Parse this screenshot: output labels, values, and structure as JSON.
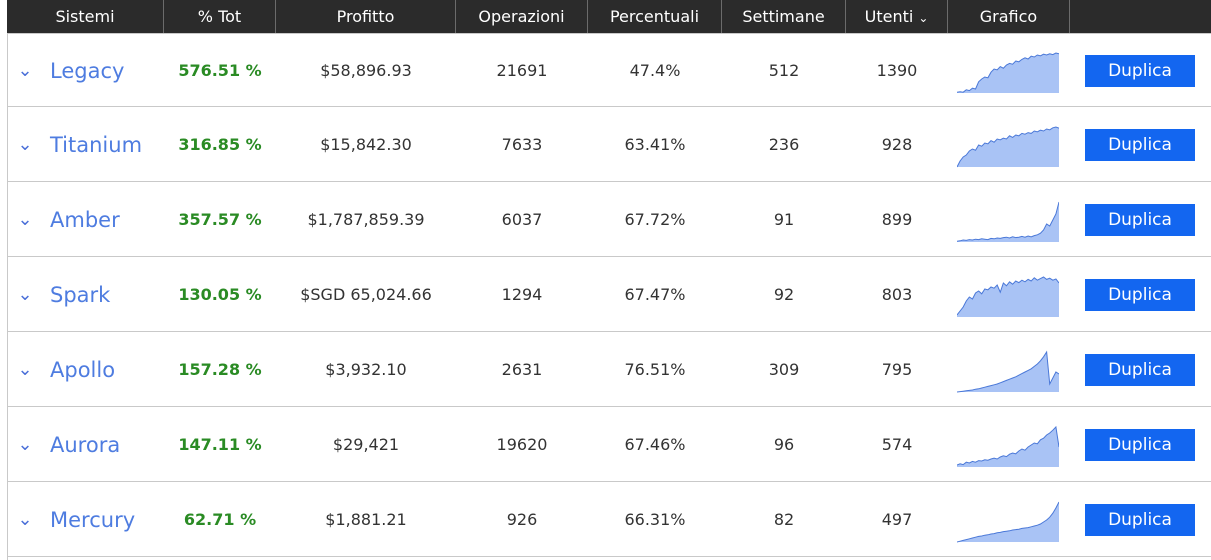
{
  "headers": {
    "sistemi": "Sistemi",
    "tot": "% Tot",
    "profitto": "Profitto",
    "operazioni": "Operazioni",
    "percentuali": "Percentuali",
    "settimane": "Settimane",
    "utenti": "Utenti",
    "grafico": "Grafico"
  },
  "colors": {
    "header_bg": "#2b2b2b",
    "name": "#4e7ce0",
    "percent": "#2a8b24",
    "button": "#1366f0",
    "sparkline_fill": "#a9c3f5",
    "sparkline_stroke": "#4a78d8"
  },
  "icons": {
    "expand": "chevron-down-icon",
    "sort": "chevron-down-icon"
  },
  "button_label": "Duplica",
  "rows": [
    {
      "name": "Legacy",
      "tot": "576.51 %",
      "profitto": "$58,896.93",
      "operazioni": "21691",
      "percentuali": "47.4%",
      "settimane": "512",
      "utenti": "1390",
      "spark": [
        0.02,
        0.03,
        0.02,
        0.08,
        0.06,
        0.12,
        0.1,
        0.28,
        0.35,
        0.4,
        0.38,
        0.52,
        0.6,
        0.58,
        0.66,
        0.62,
        0.7,
        0.74,
        0.72,
        0.8,
        0.78,
        0.84,
        0.88,
        0.85,
        0.92,
        0.9,
        0.95,
        0.93,
        0.97,
        0.95,
        0.98,
        0.96,
        1.0,
        0.98
      ]
    },
    {
      "name": "Titanium",
      "tot": "316.85 %",
      "profitto": "$15,842.30",
      "operazioni": "7633",
      "percentuali": "63.41%",
      "settimane": "236",
      "utenti": "928",
      "spark": [
        0.0,
        0.15,
        0.25,
        0.3,
        0.4,
        0.45,
        0.42,
        0.55,
        0.52,
        0.6,
        0.58,
        0.66,
        0.62,
        0.7,
        0.68,
        0.72,
        0.7,
        0.78,
        0.74,
        0.8,
        0.78,
        0.84,
        0.82,
        0.86,
        0.84,
        0.9,
        0.88,
        0.92,
        0.9,
        0.95,
        0.93,
        0.98,
        1.0,
        0.97
      ]
    },
    {
      "name": "Amber",
      "tot": "357.57 %",
      "profitto": "$1,787,859.39",
      "operazioni": "6037",
      "percentuali": "67.72%",
      "settimane": "91",
      "utenti": "899",
      "spark": [
        0.02,
        0.03,
        0.05,
        0.04,
        0.06,
        0.05,
        0.07,
        0.06,
        0.08,
        0.07,
        0.06,
        0.09,
        0.08,
        0.1,
        0.09,
        0.11,
        0.12,
        0.1,
        0.13,
        0.11,
        0.12,
        0.14,
        0.12,
        0.15,
        0.13,
        0.16,
        0.18,
        0.22,
        0.3,
        0.45,
        0.4,
        0.55,
        0.7,
        1.0
      ]
    },
    {
      "name": "Spark",
      "tot": "130.05 %",
      "profitto": "$SGD 65,024.66",
      "operazioni": "1294",
      "percentuali": "67.47%",
      "settimane": "92",
      "utenti": "803",
      "spark": [
        0.05,
        0.15,
        0.25,
        0.4,
        0.5,
        0.45,
        0.6,
        0.65,
        0.58,
        0.7,
        0.68,
        0.75,
        0.72,
        0.8,
        0.62,
        0.85,
        0.78,
        0.88,
        0.82,
        0.9,
        0.86,
        0.92,
        0.88,
        0.94,
        0.9,
        0.98,
        0.92,
        0.96,
        1.0,
        0.94,
        0.97,
        0.92,
        0.95,
        0.85
      ]
    },
    {
      "name": "Apollo",
      "tot": "157.28 %",
      "profitto": "$3,932.10",
      "operazioni": "2631",
      "percentuali": "76.51%",
      "settimane": "309",
      "utenti": "795",
      "spark": [
        0.0,
        0.01,
        0.02,
        0.03,
        0.04,
        0.05,
        0.07,
        0.08,
        0.1,
        0.12,
        0.14,
        0.16,
        0.18,
        0.2,
        0.23,
        0.26,
        0.29,
        0.32,
        0.35,
        0.38,
        0.42,
        0.46,
        0.5,
        0.54,
        0.58,
        0.64,
        0.7,
        0.78,
        0.88,
        1.0,
        0.2,
        0.35,
        0.5,
        0.45
      ]
    },
    {
      "name": "Aurora",
      "tot": "147.11 %",
      "profitto": "$29,421",
      "operazioni": "19620",
      "percentuali": "67.46%",
      "settimane": "96",
      "utenti": "574",
      "spark": [
        0.05,
        0.08,
        0.06,
        0.12,
        0.1,
        0.14,
        0.12,
        0.16,
        0.15,
        0.18,
        0.17,
        0.2,
        0.22,
        0.2,
        0.25,
        0.28,
        0.26,
        0.32,
        0.35,
        0.33,
        0.4,
        0.45,
        0.42,
        0.5,
        0.55,
        0.6,
        0.58,
        0.68,
        0.72,
        0.8,
        0.85,
        0.92,
        1.0,
        0.5
      ]
    },
    {
      "name": "Mercury",
      "tot": "62.71 %",
      "profitto": "$1,881.21",
      "operazioni": "926",
      "percentuali": "66.31%",
      "settimane": "82",
      "utenti": "497",
      "spark": [
        0.0,
        0.02,
        0.04,
        0.06,
        0.08,
        0.1,
        0.12,
        0.14,
        0.15,
        0.17,
        0.18,
        0.2,
        0.21,
        0.23,
        0.24,
        0.26,
        0.27,
        0.28,
        0.3,
        0.31,
        0.32,
        0.34,
        0.35,
        0.36,
        0.38,
        0.4,
        0.42,
        0.45,
        0.5,
        0.55,
        0.62,
        0.72,
        0.85,
        1.0
      ]
    }
  ]
}
